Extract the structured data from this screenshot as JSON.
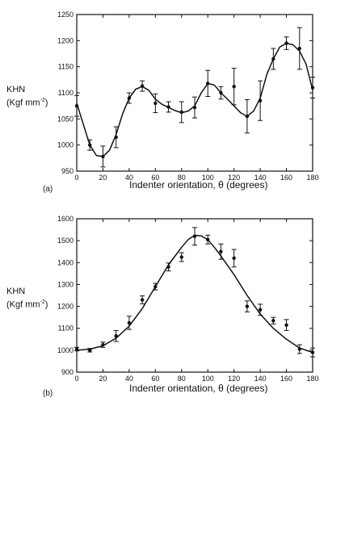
{
  "chart_data": [
    {
      "panel_label": "(a)",
      "type": "line",
      "ylabel_line1": "KHN",
      "ylabel_line2": "(Kgf mm",
      "ylabel_sup": "-2",
      "ylabel_close": ")",
      "xlabel": "Indenter orientation, θ  (degrees)",
      "xlim": [
        0,
        180
      ],
      "ylim": [
        950,
        1250
      ],
      "xticks": [
        0,
        20,
        40,
        60,
        80,
        100,
        120,
        140,
        160,
        180
      ],
      "yticks": [
        950,
        1000,
        1050,
        1100,
        1150,
        1200,
        1250
      ],
      "points": [
        {
          "x": 0,
          "y": 1075,
          "err": 20
        },
        {
          "x": 10,
          "y": 1000,
          "err": 10
        },
        {
          "x": 20,
          "y": 978,
          "err": 20
        },
        {
          "x": 30,
          "y": 1015,
          "err": 20
        },
        {
          "x": 40,
          "y": 1090,
          "err": 10
        },
        {
          "x": 50,
          "y": 1113,
          "err": 10
        },
        {
          "x": 60,
          "y": 1080,
          "err": 18
        },
        {
          "x": 70,
          "y": 1073,
          "err": 10
        },
        {
          "x": 80,
          "y": 1063,
          "err": 20
        },
        {
          "x": 90,
          "y": 1072,
          "err": 20
        },
        {
          "x": 100,
          "y": 1118,
          "err": 25
        },
        {
          "x": 110,
          "y": 1100,
          "err": 12
        },
        {
          "x": 120,
          "y": 1112,
          "err": 35
        },
        {
          "x": 130,
          "y": 1055,
          "err": 32
        },
        {
          "x": 140,
          "y": 1085,
          "err": 38
        },
        {
          "x": 150,
          "y": 1165,
          "err": 20
        },
        {
          "x": 160,
          "y": 1195,
          "err": 12
        },
        {
          "x": 170,
          "y": 1185,
          "err": 40
        },
        {
          "x": 180,
          "y": 1110,
          "err": 20
        }
      ],
      "curve": [
        [
          0,
          1080
        ],
        [
          5,
          1040
        ],
        [
          10,
          1000
        ],
        [
          15,
          980
        ],
        [
          20,
          978
        ],
        [
          25,
          990
        ],
        [
          30,
          1020
        ],
        [
          35,
          1060
        ],
        [
          40,
          1090
        ],
        [
          45,
          1107
        ],
        [
          50,
          1112
        ],
        [
          55,
          1105
        ],
        [
          60,
          1088
        ],
        [
          65,
          1078
        ],
        [
          70,
          1072
        ],
        [
          75,
          1066
        ],
        [
          80,
          1062
        ],
        [
          85,
          1065
        ],
        [
          90,
          1075
        ],
        [
          95,
          1100
        ],
        [
          100,
          1118
        ],
        [
          105,
          1115
        ],
        [
          110,
          1100
        ],
        [
          115,
          1088
        ],
        [
          120,
          1075
        ],
        [
          125,
          1062
        ],
        [
          130,
          1055
        ],
        [
          135,
          1065
        ],
        [
          140,
          1090
        ],
        [
          145,
          1135
        ],
        [
          150,
          1165
        ],
        [
          155,
          1188
        ],
        [
          160,
          1195
        ],
        [
          165,
          1192
        ],
        [
          170,
          1180
        ],
        [
          175,
          1155
        ],
        [
          180,
          1105
        ]
      ]
    },
    {
      "panel_label": "(b)",
      "type": "line",
      "ylabel_line1": "KHN",
      "ylabel_line2": "(Kgf mm",
      "ylabel_sup": "-2",
      "ylabel_close": ")",
      "xlabel": "Indenter orientation, θ  (degrees)",
      "xlim": [
        0,
        180
      ],
      "ylim": [
        900,
        1600
      ],
      "xticks": [
        0,
        20,
        40,
        60,
        80,
        100,
        120,
        140,
        160,
        180
      ],
      "yticks": [
        900,
        1000,
        1100,
        1200,
        1300,
        1400,
        1500,
        1600
      ],
      "points": [
        {
          "x": 0,
          "y": 1005,
          "err": 8
        },
        {
          "x": 10,
          "y": 1000,
          "err": 8
        },
        {
          "x": 20,
          "y": 1025,
          "err": 12
        },
        {
          "x": 30,
          "y": 1065,
          "err": 25
        },
        {
          "x": 40,
          "y": 1125,
          "err": 30
        },
        {
          "x": 50,
          "y": 1230,
          "err": 18
        },
        {
          "x": 60,
          "y": 1290,
          "err": 15
        },
        {
          "x": 70,
          "y": 1380,
          "err": 18
        },
        {
          "x": 80,
          "y": 1425,
          "err": 20
        },
        {
          "x": 90,
          "y": 1520,
          "err": 40
        },
        {
          "x": 100,
          "y": 1505,
          "err": 20
        },
        {
          "x": 110,
          "y": 1450,
          "err": 35
        },
        {
          "x": 120,
          "y": 1420,
          "err": 40
        },
        {
          "x": 130,
          "y": 1200,
          "err": 25
        },
        {
          "x": 140,
          "y": 1185,
          "err": 25
        },
        {
          "x": 150,
          "y": 1135,
          "err": 15
        },
        {
          "x": 160,
          "y": 1115,
          "err": 25
        },
        {
          "x": 170,
          "y": 1005,
          "err": 20
        },
        {
          "x": 180,
          "y": 990,
          "err": 20
        }
      ],
      "curve": [
        [
          0,
          1000
        ],
        [
          10,
          1005
        ],
        [
          20,
          1020
        ],
        [
          30,
          1055
        ],
        [
          40,
          1110
        ],
        [
          50,
          1190
        ],
        [
          60,
          1290
        ],
        [
          70,
          1390
        ],
        [
          80,
          1470
        ],
        [
          85,
          1505
        ],
        [
          90,
          1525
        ],
        [
          95,
          1522
        ],
        [
          100,
          1505
        ],
        [
          105,
          1470
        ],
        [
          110,
          1430
        ],
        [
          120,
          1345
        ],
        [
          130,
          1250
        ],
        [
          140,
          1165
        ],
        [
          150,
          1100
        ],
        [
          160,
          1050
        ],
        [
          170,
          1010
        ],
        [
          180,
          990
        ]
      ]
    }
  ]
}
